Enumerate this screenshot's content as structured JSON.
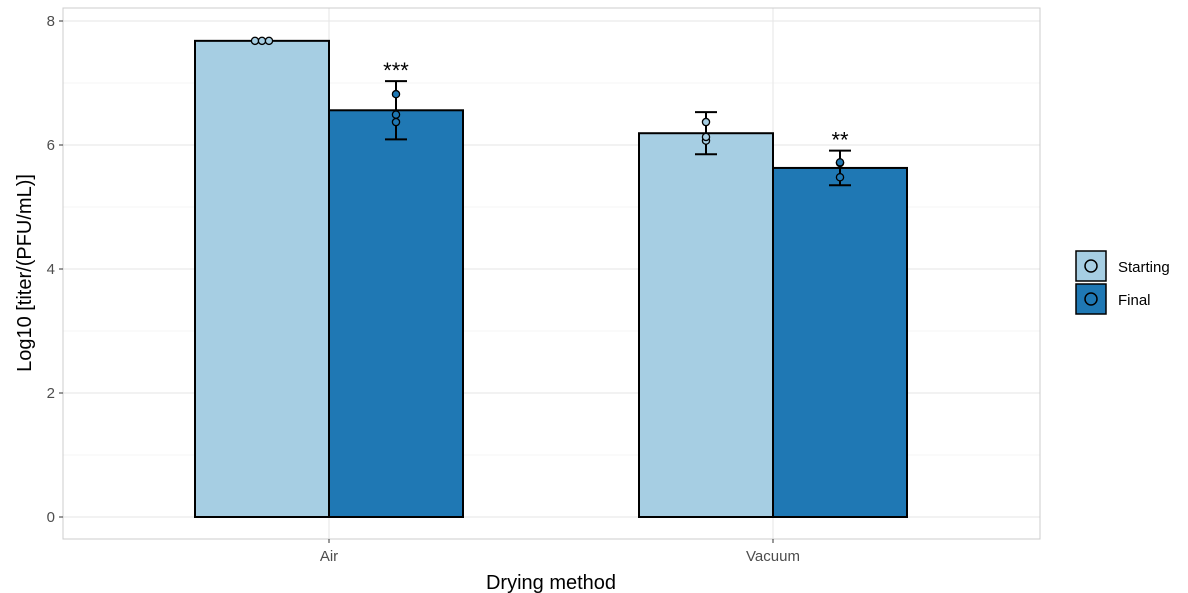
{
  "chart_data": {
    "type": "bar",
    "title": "",
    "xlabel": "Drying method",
    "ylabel": "Log10 [titer/(PFU/mL)]",
    "categories": [
      "Air",
      "Vacuum"
    ],
    "ylim": [
      0,
      8
    ],
    "yticks": [
      "0",
      "2",
      "4",
      "6",
      "8"
    ],
    "grid": true,
    "legend_position": "right",
    "series": [
      {
        "name": "Starting",
        "color": "#a6cee3",
        "values": [
          7.68,
          6.19
        ],
        "error": [
          [
            7.68,
            7.68
          ],
          [
            5.85,
            6.53
          ]
        ],
        "points": [
          [
            7.68,
            7.68,
            7.68
          ],
          [
            6.37,
            6.07,
            6.13
          ]
        ],
        "significance": [
          "",
          ""
        ]
      },
      {
        "name": "Final",
        "color": "#1f78b4",
        "values": [
          6.56,
          5.63
        ],
        "error": [
          [
            6.09,
            7.03
          ],
          [
            5.35,
            5.91
          ]
        ],
        "points": [
          [
            6.82,
            6.49,
            6.37
          ],
          [
            5.71,
            5.72,
            5.48
          ]
        ],
        "significance": [
          "***",
          "**"
        ]
      }
    ]
  }
}
